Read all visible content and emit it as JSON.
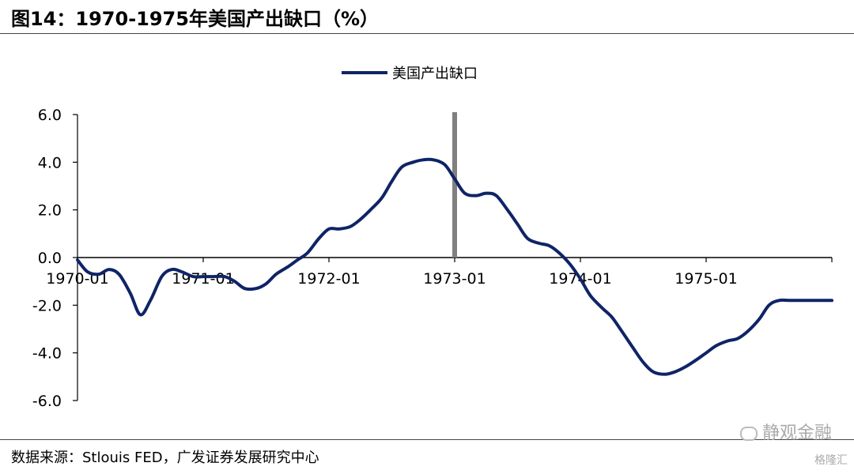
{
  "header": {
    "title": "图14：1970-1975年美国产出缺口（%）"
  },
  "footer": {
    "source": "数据来源：Stlouis FED，广发证券发展研究中心"
  },
  "watermark": {
    "main": "静观金融",
    "sub": "格隆汇"
  },
  "chart_data": {
    "type": "line",
    "title": "",
    "xlabel": "",
    "ylabel": "",
    "ylim": [
      -6.0,
      6.0
    ],
    "yticks": [
      "6.0",
      "4.0",
      "2.0",
      "0.0",
      "-2.0",
      "-4.0",
      "-6.0"
    ],
    "xticks": [
      "1970-01",
      "1971-01",
      "1972-01",
      "1973-01",
      "1974-01",
      "1975-01"
    ],
    "legend": {
      "position": "top",
      "entries": [
        "美国产出缺口"
      ]
    },
    "marker_line": {
      "x": 1973.0,
      "color": "#808080"
    },
    "series": [
      {
        "name": "美国产出缺口",
        "color": "#0f2466",
        "x": [
          1970.0,
          1970.08,
          1970.17,
          1970.25,
          1970.33,
          1970.42,
          1970.5,
          1970.58,
          1970.67,
          1970.75,
          1970.83,
          1970.92,
          1971.0,
          1971.08,
          1971.17,
          1971.25,
          1971.33,
          1971.42,
          1971.5,
          1971.58,
          1971.67,
          1971.75,
          1971.83,
          1971.92,
          1972.0,
          1972.08,
          1972.17,
          1972.25,
          1972.33,
          1972.42,
          1972.5,
          1972.58,
          1972.67,
          1972.75,
          1972.83,
          1972.92,
          1973.0,
          1973.08,
          1973.17,
          1973.25,
          1973.33,
          1973.42,
          1973.5,
          1973.58,
          1973.67,
          1973.75,
          1973.83,
          1973.92,
          1974.0,
          1974.08,
          1974.17,
          1974.25,
          1974.33,
          1974.42,
          1974.5,
          1974.58,
          1974.67,
          1974.75,
          1974.83,
          1974.92,
          1975.0,
          1975.08,
          1975.17,
          1975.25,
          1975.33,
          1975.42,
          1975.5,
          1975.58,
          1975.67,
          1975.75,
          1975.83,
          1975.92,
          1976.0
        ],
        "values": [
          -0.1,
          -0.6,
          -0.7,
          -0.5,
          -0.7,
          -1.5,
          -2.4,
          -1.8,
          -0.8,
          -0.5,
          -0.6,
          -0.8,
          -0.8,
          -0.8,
          -0.8,
          -1.0,
          -1.3,
          -1.3,
          -1.1,
          -0.7,
          -0.4,
          -0.1,
          0.2,
          0.8,
          1.2,
          1.2,
          1.3,
          1.6,
          2.0,
          2.5,
          3.2,
          3.8,
          4.0,
          4.1,
          4.1,
          3.9,
          3.3,
          2.7,
          2.6,
          2.7,
          2.6,
          2.0,
          1.4,
          0.8,
          0.6,
          0.5,
          0.2,
          -0.3,
          -0.9,
          -1.6,
          -2.1,
          -2.5,
          -3.1,
          -3.8,
          -4.4,
          -4.8,
          -4.9,
          -4.8,
          -4.6,
          -4.3,
          -4.0,
          -3.7,
          -3.5,
          -3.4,
          -3.1,
          -2.6,
          -2.0,
          -1.8,
          -1.8,
          -1.8,
          -1.8,
          -1.8,
          -1.8
        ]
      }
    ]
  }
}
